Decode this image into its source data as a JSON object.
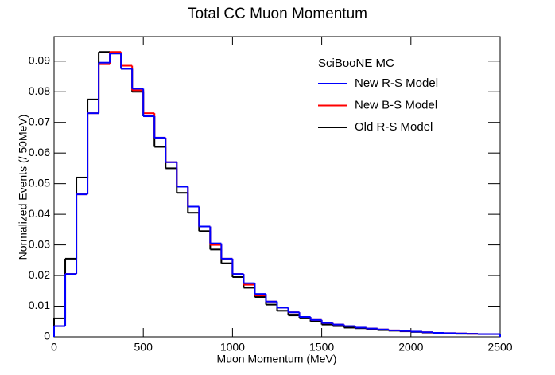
{
  "chart_data": {
    "type": "histogram",
    "title": "Total CC Muon Momentum",
    "x_label": "Muon Momentum (MeV)",
    "y_label": "Normalized Events (/ 50MeV)",
    "legend_title": "SciBooNE MC",
    "bins": [
      0,
      62.5,
      125,
      187.5,
      250,
      312.5,
      375,
      437.5,
      500,
      562.5,
      625,
      687.5,
      750,
      812.5,
      875,
      937.5,
      1000,
      1062.5,
      1125,
      1187.5,
      1250,
      1312.5,
      1375,
      1437.5,
      1500,
      1562.5,
      1625,
      1687.5,
      1750,
      1812.5,
      1875,
      1937.5,
      2000,
      2062.5,
      2125,
      2187.5,
      2250,
      2312.5,
      2375,
      2437.5,
      2500
    ],
    "series": [
      {
        "name": "New R-S Model",
        "color": "#0000ff",
        "values": [
          0.0035,
          0.0205,
          0.0465,
          0.073,
          0.0895,
          0.0925,
          0.0875,
          0.081,
          0.072,
          0.065,
          0.057,
          0.049,
          0.0425,
          0.036,
          0.0305,
          0.0255,
          0.0205,
          0.0175,
          0.014,
          0.0115,
          0.0095,
          0.008,
          0.0065,
          0.0055,
          0.0045,
          0.004,
          0.0035,
          0.003,
          0.0027,
          0.0024,
          0.0021,
          0.0019,
          0.0017,
          0.0015,
          0.0013,
          0.0012,
          0.0011,
          0.001,
          0.0009,
          0.0009
        ]
      },
      {
        "name": "New B-S Model",
        "color": "#ff0000",
        "values": [
          0.0035,
          0.0205,
          0.0465,
          0.073,
          0.089,
          0.093,
          0.0885,
          0.0805,
          0.073,
          0.065,
          0.057,
          0.049,
          0.0425,
          0.036,
          0.03,
          0.0255,
          0.0205,
          0.017,
          0.0135,
          0.0115,
          0.0095,
          0.008,
          0.0065,
          0.0055,
          0.0045,
          0.004,
          0.0035,
          0.003,
          0.0027,
          0.0024,
          0.0021,
          0.0019,
          0.0017,
          0.0015,
          0.0013,
          0.0012,
          0.0011,
          0.001,
          0.0009,
          0.0009
        ]
      },
      {
        "name": "Old R-S Model",
        "color": "#000000",
        "values": [
          0.006,
          0.0255,
          0.052,
          0.0775,
          0.093,
          0.0925,
          0.0875,
          0.08,
          0.072,
          0.062,
          0.055,
          0.047,
          0.0405,
          0.0345,
          0.0285,
          0.024,
          0.0195,
          0.016,
          0.013,
          0.0105,
          0.0085,
          0.007,
          0.006,
          0.005,
          0.004,
          0.0035,
          0.003,
          0.0028,
          0.0025,
          0.0022,
          0.002,
          0.0018,
          0.0016,
          0.0014,
          0.0013,
          0.0011,
          0.001,
          0.001,
          0.0009,
          0.0009
        ]
      }
    ],
    "xlim": [
      0,
      2500
    ],
    "xticks": [
      0,
      500,
      1000,
      1500,
      2000,
      2500
    ],
    "ylim": [
      0,
      0.098
    ],
    "yticks": [
      0,
      0.01,
      0.02,
      0.03,
      0.04,
      0.05,
      0.06,
      0.07,
      0.08,
      0.09
    ]
  }
}
